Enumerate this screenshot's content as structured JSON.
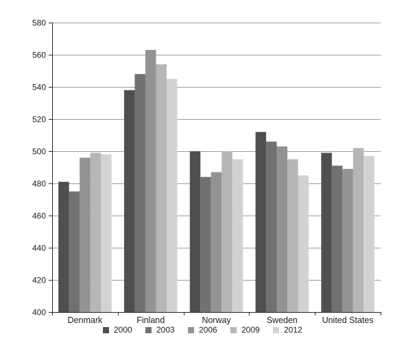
{
  "chart_data": {
    "type": "bar",
    "title": "",
    "xlabel": "",
    "ylabel": "",
    "ylim": [
      400,
      580
    ],
    "yticks": [
      400,
      420,
      440,
      460,
      480,
      500,
      520,
      540,
      560,
      580
    ],
    "grid": true,
    "legend_position": "bottom",
    "categories": [
      "Denmark",
      "Finland",
      "Norway",
      "Sweden",
      "United States"
    ],
    "series": [
      {
        "name": "2000",
        "color": "#4f4f4f",
        "values": [
          481,
          538,
          500,
          512,
          499
        ]
      },
      {
        "name": "2003",
        "color": "#717171",
        "values": [
          475,
          548,
          484,
          506,
          491
        ]
      },
      {
        "name": "2006",
        "color": "#939393",
        "values": [
          496,
          563,
          487,
          503,
          489
        ]
      },
      {
        "name": "2009",
        "color": "#b6b6b6",
        "values": [
          499,
          554,
          500,
          495,
          502
        ]
      },
      {
        "name": "2012",
        "color": "#d2d2d2",
        "values": [
          498,
          545,
          495,
          485,
          497
        ]
      }
    ]
  }
}
